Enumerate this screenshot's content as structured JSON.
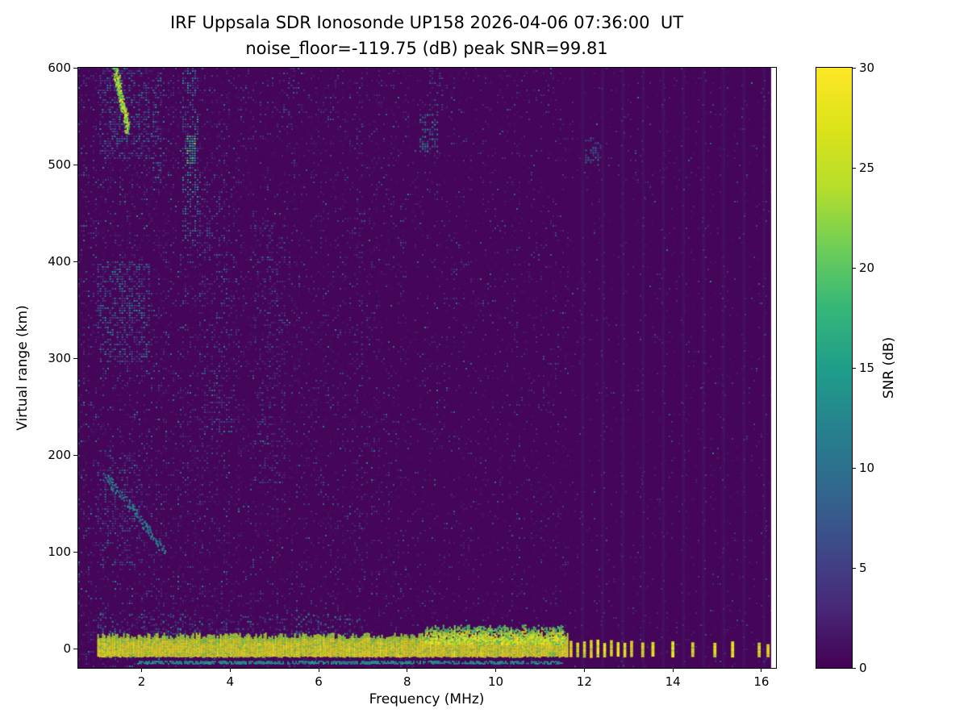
{
  "figure": {
    "title_line1": "IRF Uppsala SDR Ionosonde UP158 2026-04-06 07:36:00  UT",
    "title_line2": "noise_floor=-119.75 (dB) peak SNR=99.81"
  },
  "chart_data": {
    "type": "heatmap",
    "title": "IRF Uppsala SDR Ionosonde UP158 2026-04-06 07:36:00  UT",
    "subtitle": "noise_floor=-119.75 (dB) peak SNR=99.81",
    "xlabel": "Frequency (MHz)",
    "ylabel": "Virtual range (km)",
    "xlim": [
      0.57,
      16.33
    ],
    "ylim": [
      -20,
      600
    ],
    "xticks": [
      2,
      4,
      6,
      8,
      10,
      12,
      14,
      16
    ],
    "yticks": [
      0,
      100,
      200,
      300,
      400,
      500,
      600
    ],
    "data_freq_extent": [
      1.0,
      16.22
    ],
    "noise_floor_db": -119.75,
    "peak_snr_db": 99.81,
    "background_snr": 0.4,
    "seed": 20260406,
    "colorbar": {
      "label": "SNR (dB)",
      "min": 0,
      "max": 30,
      "ticks": [
        0,
        5,
        10,
        15,
        20,
        25,
        30
      ]
    },
    "colormap": {
      "name": "viridis",
      "stops": [
        [
          0.0,
          "#440154"
        ],
        [
          0.1,
          "#482878"
        ],
        [
          0.2,
          "#3e4a89"
        ],
        [
          0.3,
          "#31688e"
        ],
        [
          0.4,
          "#26828e"
        ],
        [
          0.5,
          "#1f9e89"
        ],
        [
          0.6,
          "#35b779"
        ],
        [
          0.7,
          "#6ece58"
        ],
        [
          0.8,
          "#b5de2b"
        ],
        [
          0.9,
          "#dce319"
        ],
        [
          1.0,
          "#fde725"
        ]
      ]
    },
    "noise": {
      "cell": 3,
      "regions": [
        {
          "f": [
            0.57,
            4.0
          ],
          "p": 0.32,
          "mean": 2.4
        },
        {
          "f": [
            4.0,
            8.0
          ],
          "p": 0.24,
          "mean": 2.0
        },
        {
          "f": [
            8.0,
            11.65
          ],
          "p": 0.17,
          "mean": 1.8
        },
        {
          "f": [
            11.65,
            16.33
          ],
          "p": 0.1,
          "mean": 1.5
        }
      ]
    },
    "features": [
      {
        "kind": "vstripes",
        "name": "rfi-columns",
        "f0": 11.93,
        "spacing": 0.455,
        "count": 10,
        "width": 0.07,
        "snr": 2.5,
        "alpha": 0.3
      },
      {
        "kind": "cluster",
        "name": "upper-left-halo",
        "f": [
          1.05,
          2.15
        ],
        "km": [
          505,
          600
        ],
        "snr": [
          3,
          14
        ],
        "density": 0.38
      },
      {
        "kind": "trace",
        "name": "upper-left-bright-streak",
        "from": [
          1.38,
          600
        ],
        "to": [
          1.68,
          538
        ],
        "thickness": 16,
        "snr": [
          13,
          30
        ],
        "density": 0.85
      },
      {
        "kind": "cluster",
        "name": "streak-2.3mhz",
        "f": [
          2.25,
          2.45
        ],
        "km": [
          480,
          600
        ],
        "snr": [
          3,
          15
        ],
        "density": 0.32
      },
      {
        "kind": "cluster",
        "name": "streak-3.1mhz",
        "f": [
          2.92,
          3.28
        ],
        "km": [
          420,
          600
        ],
        "snr": [
          4,
          16
        ],
        "density": 0.36
      },
      {
        "kind": "cluster",
        "name": "bright-spot-3.1mhz",
        "f": [
          3.02,
          3.22
        ],
        "km": [
          495,
          530
        ],
        "snr": [
          12,
          24
        ],
        "density": 0.7
      },
      {
        "kind": "cluster",
        "name": "streaks-3.5-4mhz",
        "f": [
          3.3,
          4.15
        ],
        "km": [
          220,
          490
        ],
        "snr": [
          3,
          11
        ],
        "density": 0.15
      },
      {
        "kind": "cluster",
        "name": "left-cluster-350km",
        "f": [
          1.0,
          2.15
        ],
        "km": [
          295,
          400
        ],
        "snr": [
          4,
          15
        ],
        "density": 0.38
      },
      {
        "kind": "cluster",
        "name": "left-cluster-150km",
        "f": [
          1.0,
          2.0
        ],
        "km": [
          85,
          205
        ],
        "snr": [
          3,
          12
        ],
        "density": 0.22
      },
      {
        "kind": "trace",
        "name": "echo-trace-110km",
        "from": [
          1.15,
          180
        ],
        "to": [
          2.5,
          102
        ],
        "thickness": 9,
        "snr": [
          5,
          16
        ],
        "density": 0.5
      },
      {
        "kind": "cluster",
        "name": "mid-5mhz-scatter",
        "f": [
          4.55,
          5.25
        ],
        "km": [
          170,
          440
        ],
        "snr": [
          3,
          10
        ],
        "density": 0.13
      },
      {
        "kind": "cluster",
        "name": "speckle-5.4mhz-top",
        "f": [
          5.2,
          5.55
        ],
        "km": [
          540,
          600
        ],
        "snr": [
          3,
          11
        ],
        "density": 0.2
      },
      {
        "kind": "cluster",
        "name": "speckle-6.9mhz-column",
        "f": [
          6.85,
          7.0
        ],
        "km": [
          60,
          600
        ],
        "snr": [
          3,
          8
        ],
        "density": 0.1
      },
      {
        "kind": "cluster",
        "name": "speckle-8.6mhz-top",
        "f": [
          8.5,
          8.8
        ],
        "km": [
          548,
          600
        ],
        "snr": [
          3,
          10
        ],
        "density": 0.22
      },
      {
        "kind": "cluster",
        "name": "patch-8.5mhz-530km",
        "f": [
          8.28,
          8.68
        ],
        "km": [
          512,
          552
        ],
        "snr": [
          7,
          17
        ],
        "density": 0.5
      },
      {
        "kind": "cluster",
        "name": "patch-12.2mhz-510km",
        "f": [
          12.02,
          12.38
        ],
        "km": [
          498,
          528
        ],
        "snr": [
          5,
          13
        ],
        "density": 0.45
      },
      {
        "kind": "cluster",
        "name": "band-top-speckle",
        "f": [
          1.0,
          7.0
        ],
        "km": [
          13,
          36
        ],
        "snr": [
          4,
          16
        ],
        "density": 0.22
      },
      {
        "kind": "hband",
        "name": "ground-return-band",
        "f": [
          1.0,
          11.62
        ],
        "km": [
          -8,
          12
        ],
        "snr": [
          21,
          30
        ],
        "density": 1.0,
        "jitter": 7
      },
      {
        "kind": "hband",
        "name": "ground-return-thicker",
        "f": [
          8.4,
          11.55
        ],
        "km": [
          5,
          21
        ],
        "snr": [
          17,
          30
        ],
        "density": 0.75,
        "jitter": 6
      },
      {
        "kind": "hband",
        "name": "bottom-thin-line",
        "f": [
          1.9,
          11.5
        ],
        "km": [
          -15.5,
          -13
        ],
        "snr": [
          10,
          22
        ],
        "density": 0.8,
        "jitter": 1
      },
      {
        "kind": "comb",
        "name": "ground-return-comb",
        "f0": 11.7,
        "spacing": 0.152,
        "count": 10,
        "width": 0.065,
        "km": [
          -8,
          10
        ],
        "snr": [
          21,
          30
        ]
      },
      {
        "kind": "marks",
        "name": "ground-return-marks",
        "freqs": [
          13.32,
          13.55,
          14.0,
          14.45,
          14.95,
          15.35,
          15.95,
          16.15
        ],
        "width": 0.07,
        "km": [
          -8,
          8
        ],
        "snr": [
          21,
          30
        ]
      }
    ]
  }
}
